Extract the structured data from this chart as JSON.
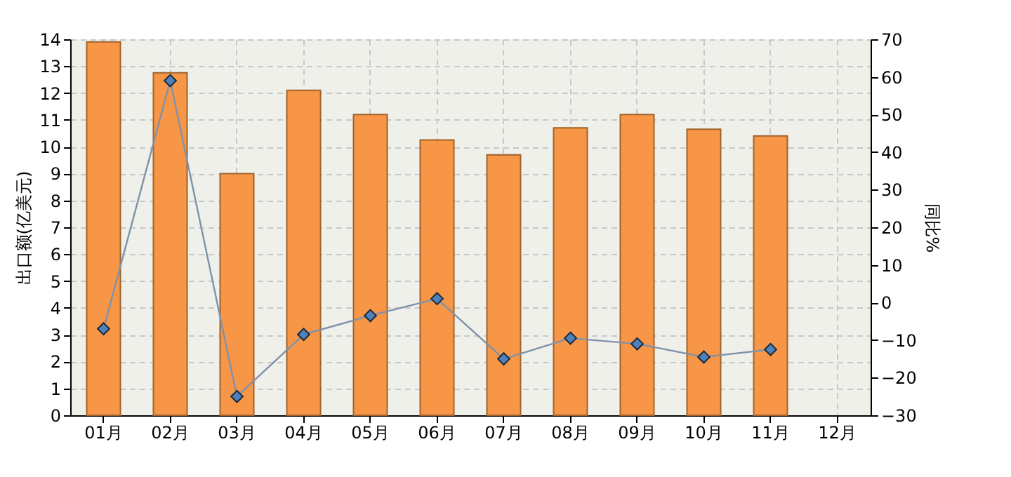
{
  "chart_data": {
    "type": "bar",
    "ylabel": "出口额(亿美元)",
    "y2label": "同比%",
    "categories": [
      "01月",
      "02月",
      "03月",
      "04月",
      "05月",
      "06月",
      "07月",
      "08月",
      "09月",
      "10月",
      "11月",
      "12月"
    ],
    "series": [
      {
        "color": "#f79646",
        "values": [
          13.9,
          12.75,
          9.0,
          12.1,
          11.2,
          10.25,
          9.7,
          10.7,
          11.2,
          10.65,
          10.4,
          null
        ]
      },
      {
        "type": "line",
        "axis": "y2",
        "color": "#4f81bd",
        "marker": "diamond",
        "values": [
          -7,
          59,
          -25,
          -8.5,
          -3.5,
          1,
          -15,
          -9.5,
          -11,
          -14.5,
          -12.5,
          null
        ]
      }
    ],
    "ylim": [
      0,
      14
    ],
    "yticks": [
      0,
      1,
      2,
      3,
      4,
      5,
      6,
      7,
      8,
      9,
      10,
      11,
      12,
      13,
      14
    ],
    "y2lim": [
      -30,
      70
    ],
    "y2ticks": [
      -30,
      -20,
      -10,
      0,
      10,
      20,
      30,
      40,
      50,
      60,
      70
    ],
    "grid": true
  }
}
